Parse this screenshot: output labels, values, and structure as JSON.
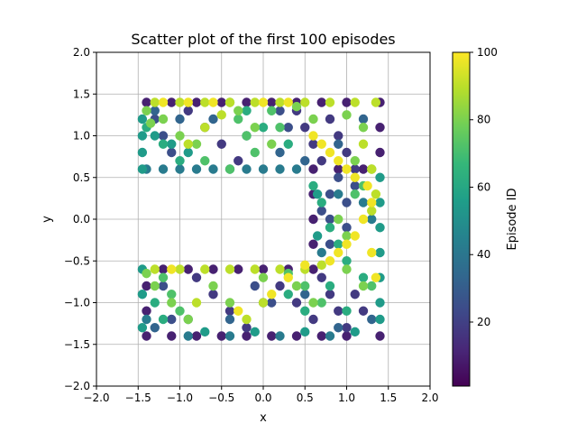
{
  "chart_data": {
    "type": "scatter",
    "title": "Scatter plot of the first 100 episodes",
    "xlabel": "x",
    "ylabel": "y",
    "xlim": [
      -2.0,
      2.0
    ],
    "ylim": [
      -2.0,
      2.0
    ],
    "xticks": [
      "−2.0",
      "−1.5",
      "−1.0",
      "−0.5",
      "0.0",
      "0.5",
      "1.0",
      "1.5",
      "2.0"
    ],
    "yticks": [
      "−2.0",
      "−1.5",
      "−1.0",
      "−0.5",
      "0.0",
      "0.5",
      "1.0",
      "1.5",
      "2.0"
    ],
    "grid": true,
    "colormap": "viridis",
    "colorbar": {
      "label": "Episode ID",
      "range": [
        1,
        100
      ],
      "ticks": [
        "20",
        "40",
        "60",
        "80",
        "100"
      ],
      "stops": [
        "#440154",
        "#482878",
        "#3e4989",
        "#31688e",
        "#26828e",
        "#1f9e89",
        "#35b779",
        "#6ece58",
        "#b5de2b",
        "#fde725"
      ]
    },
    "point_groups": [
      {
        "episode": 10,
        "points": [
          [
            -1.4,
            1.4
          ],
          [
            -1.1,
            1.4
          ],
          [
            -0.8,
            1.4
          ],
          [
            -0.5,
            1.4
          ],
          [
            -0.2,
            1.4
          ],
          [
            0.1,
            1.4
          ],
          [
            0.4,
            1.4
          ],
          [
            0.7,
            1.4
          ],
          [
            1.0,
            1.4
          ],
          [
            1.4,
            1.4
          ],
          [
            1.4,
            1.1
          ],
          [
            1.4,
            0.8
          ],
          [
            1.2,
            0.6
          ],
          [
            0.9,
            0.6
          ],
          [
            0.6,
            0.6
          ],
          [
            0.6,
            0.3
          ],
          [
            0.6,
            0.0
          ],
          [
            0.6,
            -0.3
          ],
          [
            0.6,
            -0.6
          ],
          [
            0.3,
            -0.6
          ],
          [
            0.0,
            -0.6
          ],
          [
            -0.3,
            -0.6
          ],
          [
            -0.6,
            -0.6
          ],
          [
            -0.9,
            -0.6
          ],
          [
            -1.2,
            -0.6
          ],
          [
            -1.4,
            -0.8
          ],
          [
            -1.4,
            -1.1
          ],
          [
            -1.4,
            -1.4
          ],
          [
            -1.1,
            -1.4
          ],
          [
            -0.8,
            -1.4
          ],
          [
            -0.5,
            -1.4
          ],
          [
            -0.2,
            -1.4
          ],
          [
            0.1,
            -1.4
          ],
          [
            0.4,
            -1.4
          ],
          [
            0.7,
            -1.4
          ],
          [
            1.0,
            -1.4
          ],
          [
            1.4,
            -1.4
          ]
        ]
      },
      {
        "episode": 18,
        "points": [
          [
            0.4,
            1.3
          ],
          [
            0.5,
            1.1
          ],
          [
            0.6,
            0.9
          ],
          [
            0.7,
            0.7
          ],
          [
            0.8,
            1.2
          ],
          [
            0.9,
            1.0
          ],
          [
            1.0,
            0.8
          ],
          [
            1.1,
            0.6
          ],
          [
            -0.9,
            1.3
          ],
          [
            -0.7,
            1.1
          ],
          [
            -0.5,
            0.9
          ],
          [
            -0.3,
            0.7
          ],
          [
            0.7,
            -0.7
          ],
          [
            0.8,
            -0.9
          ],
          [
            0.9,
            -1.1
          ],
          [
            1.0,
            -1.3
          ],
          [
            1.1,
            -0.9
          ],
          [
            1.2,
            -1.1
          ],
          [
            -0.8,
            -0.7
          ],
          [
            -0.6,
            -0.9
          ],
          [
            -0.4,
            -1.1
          ],
          [
            -0.2,
            -1.3
          ],
          [
            0.2,
            -0.8
          ],
          [
            0.4,
            -1.0
          ],
          [
            0.6,
            -1.2
          ]
        ]
      },
      {
        "episode": 25,
        "points": [
          [
            0.8,
            0.3
          ],
          [
            0.8,
            0.0
          ],
          [
            0.8,
            -0.3
          ],
          [
            0.9,
            0.5
          ],
          [
            1.0,
            0.2
          ],
          [
            1.0,
            -0.1
          ],
          [
            1.1,
            0.4
          ],
          [
            0.7,
            0.1
          ],
          [
            -1.3,
            1.2
          ],
          [
            -1.2,
            1.0
          ],
          [
            -1.1,
            0.8
          ],
          [
            0.2,
            1.3
          ],
          [
            0.3,
            1.1
          ],
          [
            -0.1,
            -0.8
          ],
          [
            0.1,
            -1.0
          ],
          [
            -1.2,
            -0.8
          ],
          [
            -1.1,
            -1.2
          ]
        ]
      },
      {
        "episode": 33,
        "points": [
          [
            -1.3,
            1.3
          ],
          [
            -1.0,
            1.2
          ],
          [
            -0.6,
            1.2
          ],
          [
            -0.2,
            1.0
          ],
          [
            0.2,
            0.8
          ],
          [
            0.5,
            0.7
          ],
          [
            0.9,
            0.9
          ],
          [
            1.2,
            1.2
          ],
          [
            -1.3,
            -1.3
          ],
          [
            -0.9,
            -1.2
          ],
          [
            -0.4,
            -1.2
          ],
          [
            0.0,
            -1.0
          ],
          [
            0.5,
            -0.9
          ],
          [
            0.9,
            -1.3
          ],
          [
            1.3,
            -1.2
          ]
        ]
      },
      {
        "episode": 42,
        "points": [
          [
            -1.4,
            0.6
          ],
          [
            -1.2,
            0.6
          ],
          [
            -1.0,
            0.6
          ],
          [
            -0.8,
            0.6
          ],
          [
            -0.6,
            0.6
          ],
          [
            -0.4,
            0.6
          ],
          [
            -0.2,
            0.6
          ],
          [
            0.0,
            0.6
          ],
          [
            0.2,
            0.6
          ],
          [
            0.4,
            0.6
          ],
          [
            0.9,
            0.3
          ],
          [
            1.2,
            0.2
          ],
          [
            1.3,
            0.0
          ],
          [
            0.7,
            -0.4
          ],
          [
            -1.4,
            -1.2
          ],
          [
            -0.9,
            -1.4
          ],
          [
            -0.4,
            -1.4
          ],
          [
            0.2,
            -1.4
          ],
          [
            0.8,
            -1.4
          ]
        ]
      },
      {
        "episode": 55,
        "points": [
          [
            -1.45,
            1.2
          ],
          [
            -1.45,
            1.0
          ],
          [
            -1.45,
            0.8
          ],
          [
            -1.45,
            0.6
          ],
          [
            -1.3,
            1.0
          ],
          [
            -1.1,
            0.9
          ],
          [
            -0.9,
            0.8
          ],
          [
            1.4,
            0.5
          ],
          [
            1.4,
            0.2
          ],
          [
            1.4,
            -0.1
          ],
          [
            1.4,
            -0.4
          ],
          [
            1.4,
            -0.7
          ],
          [
            1.4,
            -1.0
          ],
          [
            1.4,
            -1.2
          ],
          [
            0.65,
            0.3
          ],
          [
            0.65,
            -0.2
          ],
          [
            -1.45,
            -0.6
          ],
          [
            -1.45,
            -0.9
          ],
          [
            -1.45,
            -1.3
          ],
          [
            -0.7,
            -1.35
          ],
          [
            -0.1,
            -1.35
          ],
          [
            0.5,
            -1.35
          ],
          [
            1.1,
            -1.35
          ]
        ]
      },
      {
        "episode": 62,
        "points": [
          [
            -1.4,
            1.1
          ],
          [
            -1.2,
            0.9
          ],
          [
            -1.0,
            0.7
          ],
          [
            -0.2,
            1.3
          ],
          [
            0.0,
            1.1
          ],
          [
            0.3,
            0.9
          ],
          [
            0.6,
            0.4
          ],
          [
            0.7,
            0.2
          ],
          [
            0.8,
            -0.1
          ],
          [
            0.9,
            -0.3
          ],
          [
            1.0,
            -0.5
          ],
          [
            1.2,
            -0.7
          ],
          [
            -1.3,
            -1.0
          ],
          [
            -1.2,
            -1.2
          ],
          [
            0.3,
            -0.9
          ],
          [
            0.5,
            -1.1
          ],
          [
            0.8,
            -0.8
          ],
          [
            1.0,
            -1.1
          ]
        ]
      },
      {
        "episode": 72,
        "points": [
          [
            -0.4,
            1.4
          ],
          [
            -0.3,
            1.2
          ],
          [
            -0.2,
            1.0
          ],
          [
            -0.1,
            0.8
          ],
          [
            -0.4,
            0.6
          ],
          [
            -0.7,
            0.7
          ],
          [
            0.1,
            1.3
          ],
          [
            0.2,
            1.1
          ],
          [
            1.3,
            0.6
          ],
          [
            1.2,
            0.4
          ],
          [
            1.1,
            0.3
          ],
          [
            -1.2,
            -0.7
          ],
          [
            -1.1,
            -0.9
          ],
          [
            -1.0,
            -1.1
          ],
          [
            0.3,
            -0.65
          ],
          [
            0.5,
            -0.8
          ],
          [
            0.7,
            -1.0
          ],
          [
            1.3,
            -0.8
          ]
        ]
      },
      {
        "episode": 80,
        "points": [
          [
            -1.4,
            1.3
          ],
          [
            -1.35,
            1.15
          ],
          [
            -1.2,
            1.2
          ],
          [
            -1.0,
            1.0
          ],
          [
            -0.8,
            0.9
          ],
          [
            -0.3,
            1.3
          ],
          [
            -0.1,
            1.1
          ],
          [
            0.1,
            0.9
          ],
          [
            0.4,
            1.35
          ],
          [
            0.6,
            1.2
          ],
          [
            1.0,
            1.25
          ],
          [
            1.2,
            1.1
          ],
          [
            1.1,
            0.7
          ],
          [
            -1.4,
            -0.65
          ],
          [
            -1.3,
            -0.8
          ],
          [
            -1.1,
            -1.0
          ],
          [
            -0.9,
            -1.2
          ],
          [
            -0.6,
            -0.8
          ],
          [
            -0.4,
            -1.0
          ],
          [
            0.0,
            -0.7
          ],
          [
            0.4,
            -0.8
          ],
          [
            0.6,
            -1.0
          ],
          [
            1.0,
            -0.6
          ],
          [
            1.2,
            -0.8
          ],
          [
            1.0,
            -0.2
          ],
          [
            0.9,
            0.0
          ]
        ]
      },
      {
        "episode": 90,
        "points": [
          [
            -1.3,
            1.4
          ],
          [
            -1.0,
            1.4
          ],
          [
            -0.7,
            1.4
          ],
          [
            -0.4,
            1.4
          ],
          [
            -0.1,
            1.4
          ],
          [
            0.2,
            1.4
          ],
          [
            0.5,
            1.4
          ],
          [
            0.8,
            1.4
          ],
          [
            1.1,
            1.4
          ],
          [
            1.35,
            1.4
          ],
          [
            -0.9,
            0.9
          ],
          [
            -0.7,
            1.1
          ],
          [
            -0.5,
            1.25
          ],
          [
            1.2,
            0.9
          ],
          [
            1.3,
            0.6
          ],
          [
            1.35,
            0.3
          ],
          [
            1.3,
            0.1
          ],
          [
            -1.3,
            -0.6
          ],
          [
            -1.0,
            -0.6
          ],
          [
            -0.7,
            -0.6
          ],
          [
            -0.4,
            -0.6
          ],
          [
            -0.1,
            -0.6
          ],
          [
            0.2,
            -0.6
          ],
          [
            0.5,
            -0.6
          ],
          [
            0.7,
            -0.55
          ],
          [
            -0.8,
            -1.0
          ],
          [
            -0.2,
            -1.2
          ],
          [
            0.0,
            -1.0
          ]
        ]
      },
      {
        "episode": 98,
        "points": [
          [
            -1.2,
            1.4
          ],
          [
            -0.9,
            1.4
          ],
          [
            -0.6,
            1.4
          ],
          [
            0.0,
            1.4
          ],
          [
            0.3,
            1.4
          ],
          [
            0.6,
            1.0
          ],
          [
            0.7,
            0.9
          ],
          [
            0.8,
            0.8
          ],
          [
            0.9,
            0.7
          ],
          [
            1.0,
            0.6
          ],
          [
            1.1,
            0.5
          ],
          [
            1.25,
            0.4
          ],
          [
            1.3,
            0.2
          ],
          [
            1.2,
            0.0
          ],
          [
            1.1,
            -0.2
          ],
          [
            1.0,
            -0.3
          ],
          [
            0.9,
            -0.4
          ],
          [
            0.8,
            -0.5
          ],
          [
            1.3,
            -0.4
          ],
          [
            1.35,
            -0.7
          ],
          [
            -0.3,
            -1.1
          ],
          [
            0.1,
            -0.9
          ],
          [
            0.3,
            -0.7
          ],
          [
            0.5,
            -0.55
          ],
          [
            -1.1,
            -0.6
          ]
        ]
      }
    ]
  }
}
